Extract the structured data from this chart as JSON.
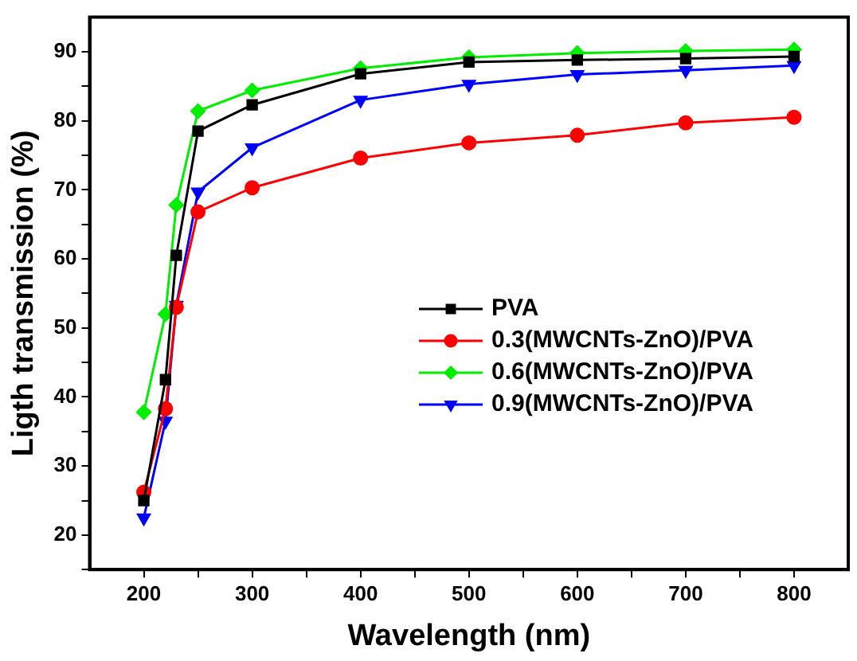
{
  "chart_data": {
    "type": "line",
    "xlabel": "Wavelength (nm)",
    "ylabel": "Ligth transmission (%)",
    "x": [
      200,
      220,
      230,
      250,
      300,
      400,
      500,
      600,
      700,
      800
    ],
    "series": [
      {
        "name": "PVA",
        "color": "#000000",
        "marker": "square",
        "values": [
          25,
          42.5,
          60.5,
          78.5,
          82.3,
          86.8,
          88.5,
          88.8,
          89,
          89.3
        ]
      },
      {
        "name": "0.3(MWCNTs-ZnO)/PVA",
        "color": "#ff0000",
        "marker": "circle",
        "values": [
          26.2,
          38.3,
          53,
          66.8,
          70.3,
          74.6,
          76.8,
          77.9,
          79.7,
          80.5
        ]
      },
      {
        "name": "0.6(MWCNTs-ZnO)/PVA",
        "color": "#00ee00",
        "marker": "diamond",
        "values": [
          37.8,
          52,
          67.8,
          81.4,
          84.4,
          87.6,
          89.2,
          89.8,
          90.1,
          90.3
        ]
      },
      {
        "name": "0.9(MWCNTs-ZnO)/PVA",
        "color": "#0000ff",
        "marker": "triangle",
        "values": [
          22.5,
          36.5,
          53.3,
          69.7,
          76.1,
          83,
          85.3,
          86.7,
          87.3,
          88
        ]
      }
    ],
    "xlim": [
      150,
      850
    ],
    "xticks": [
      200,
      {
        "value": 250,
        "label": null
      },
      300,
      {
        "value": 350,
        "label": null
      },
      400,
      {
        "value": 450,
        "label": null
      },
      500,
      {
        "value": 550,
        "label": null
      },
      600,
      {
        "value": 650,
        "label": null
      },
      700,
      {
        "value": 750,
        "label": null
      },
      800
    ],
    "ylim": [
      15,
      95
    ],
    "yticks": [
      {
        "value": 15,
        "label": null
      },
      20,
      {
        "value": 25,
        "label": null
      },
      30,
      {
        "value": 35,
        "label": null
      },
      40,
      {
        "value": 45,
        "label": null
      },
      50,
      {
        "value": 55,
        "label": null
      },
      60,
      {
        "value": 65,
        "label": null
      },
      70,
      {
        "value": 75,
        "label": null
      },
      80,
      {
        "value": 85,
        "label": null
      },
      90
    ],
    "grid": false,
    "legend": "right",
    "line_style": "solid"
  }
}
